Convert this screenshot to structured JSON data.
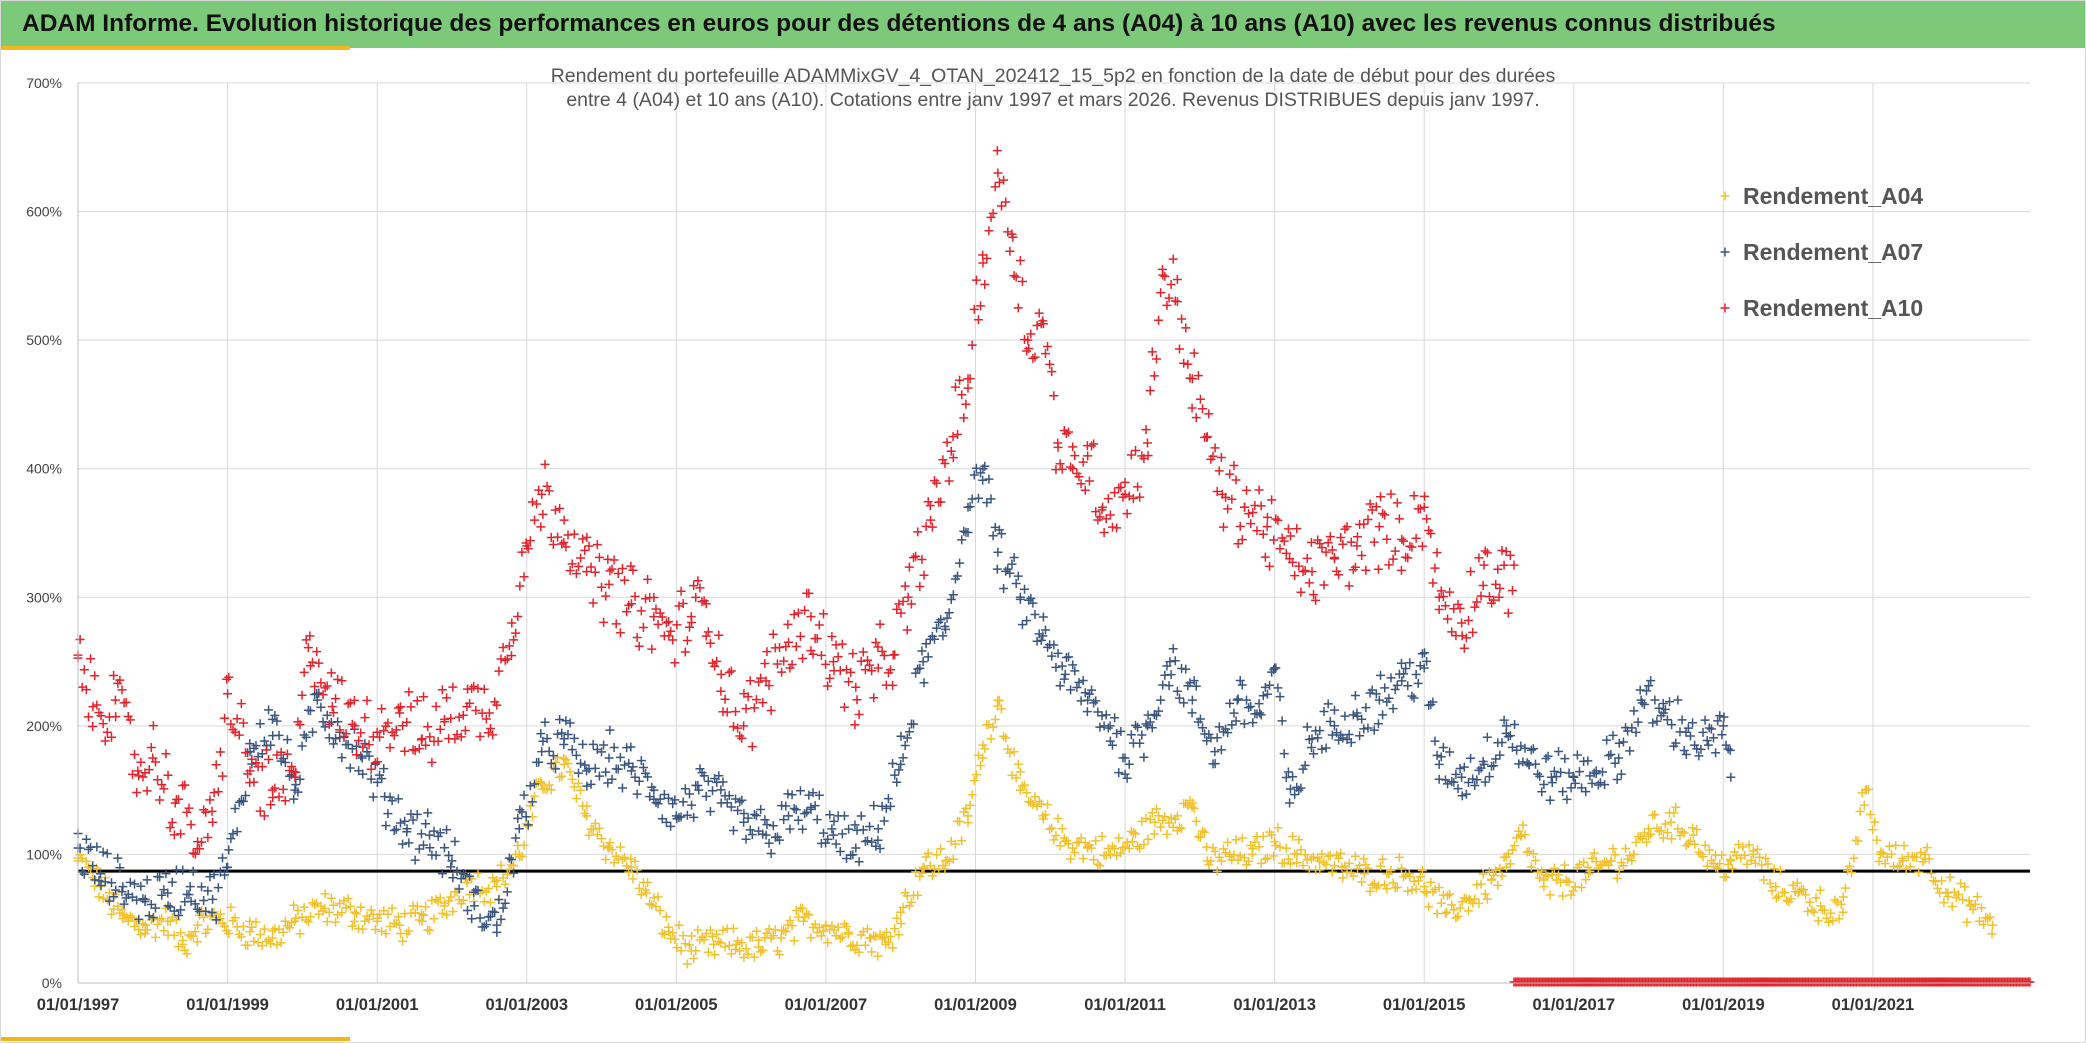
{
  "banner": {
    "title": "ADAM Informe. Evolution historique des performances en euros pour des détentions de 4 ans (A04) à 10 ans (A10) avec les revenus connus distribués"
  },
  "colors": {
    "banner_bg": "#7dc97a",
    "accent": "#f2b51c",
    "A04": "#f2c12e",
    "A07": "#3a5580",
    "A10": "#e3232c",
    "reference_line": "#000000",
    "grid": "#d9d9d9"
  },
  "chart_data": {
    "type": "scatter",
    "marker": "plus",
    "title_lines": [
      "Rendement du portefeuille ADAMMixGV_4_OTAN_202412_15_5p2  en fonction de la date de début pour des durées",
      "entre 4 (A04) et 10 ans (A10). Cotations entre janv 1997 et mars 2026. Revenus DISTRIBUES depuis janv 1997."
    ],
    "xlim": [
      1997.0,
      2023.1
    ],
    "ylim": [
      0,
      700
    ],
    "y_ticks": [
      0,
      100,
      200,
      300,
      400,
      500,
      600,
      700
    ],
    "y_tick_labels": [
      "0%",
      "100%",
      "200%",
      "300%",
      "400%",
      "500%",
      "600%",
      "700%"
    ],
    "x_ticks": [
      1997,
      1999,
      2001,
      2003,
      2005,
      2007,
      2009,
      2011,
      2013,
      2015,
      2017,
      2019,
      2021
    ],
    "x_tick_labels": [
      "01/01/1997",
      "01/01/1999",
      "01/01/2001",
      "01/01/2003",
      "01/01/2005",
      "01/01/2007",
      "01/01/2009",
      "01/01/2011",
      "01/01/2013",
      "01/01/2015",
      "01/01/2017",
      "01/01/2019",
      "01/01/2021"
    ],
    "grid": true,
    "legend_position": "right",
    "reference_line_y": 87,
    "zero_band_A10": {
      "x_start": 2016.2,
      "x_end": 2023.1,
      "y": 0
    },
    "series": [
      {
        "name": "Rendement_A04",
        "key": "A04",
        "x": [
          1997.0,
          1997.3,
          1997.6,
          1997.9,
          1998.2,
          1998.4,
          1998.6,
          1998.9,
          1999.3,
          1999.6,
          1999.9,
          2000.3,
          2000.7,
          2001.0,
          2001.3,
          2001.6,
          2001.9,
          2002.2,
          2002.6,
          2002.9,
          2003.2,
          2003.5,
          2003.8,
          2004.1,
          2004.4,
          2004.6,
          2004.9,
          2005.2,
          2005.5,
          2005.8,
          2006.1,
          2006.4,
          2006.7,
          2007.0,
          2007.3,
          2007.6,
          2007.8,
          2008.0,
          2008.3,
          2008.6,
          2008.9,
          2009.1,
          2009.3,
          2009.6,
          2009.9,
          2010.2,
          2010.5,
          2010.8,
          2011.1,
          2011.4,
          2011.7,
          2011.9,
          2012.1,
          2012.4,
          2012.7,
          2013.0,
          2013.3,
          2013.6,
          2013.9,
          2014.2,
          2014.5,
          2014.8,
          2015.0,
          2015.3,
          2015.6,
          2015.9,
          2016.1,
          2016.3,
          2016.6,
          2016.9,
          2017.2,
          2017.5,
          2017.8,
          2018.0,
          2018.3,
          2018.6,
          2018.9,
          2019.1,
          2019.4,
          2019.7,
          2020.0,
          2020.3,
          2020.6,
          2020.9,
          2021.1,
          2021.4,
          2021.7,
          2022.0,
          2022.3,
          2022.6
        ],
        "values": [
          95,
          75,
          50,
          45,
          48,
          30,
          45,
          50,
          40,
          35,
          48,
          58,
          55,
          48,
          45,
          48,
          60,
          78,
          75,
          100,
          155,
          170,
          130,
          105,
          90,
          70,
          40,
          25,
          30,
          30,
          28,
          35,
          48,
          45,
          38,
          35,
          30,
          55,
          90,
          95,
          130,
          185,
          220,
          150,
          130,
          110,
          105,
          100,
          110,
          125,
          130,
          140,
          95,
          100,
          100,
          110,
          100,
          95,
          90,
          85,
          85,
          85,
          75,
          55,
          65,
          80,
          90,
          115,
          75,
          80,
          85,
          95,
          100,
          120,
          125,
          115,
          90,
          95,
          100,
          75,
          70,
          60,
          55,
          150,
          100,
          95,
          100,
          70,
          60,
          45
        ]
      },
      {
        "name": "Rendement_A07",
        "key": "A07",
        "x": [
          1997.0,
          1997.3,
          1997.6,
          1997.9,
          1998.2,
          1998.5,
          1998.8,
          1999.0,
          1999.3,
          1999.6,
          1999.9,
          2000.2,
          2000.5,
          2000.8,
          2001.1,
          2001.4,
          2001.7,
          2002.0,
          2002.3,
          2002.6,
          2002.9,
          2003.2,
          2003.5,
          2003.8,
          2004.1,
          2004.4,
          2004.7,
          2005.0,
          2005.3,
          2005.6,
          2005.9,
          2006.2,
          2006.5,
          2006.8,
          2007.1,
          2007.4,
          2007.7,
          2008.0,
          2008.3,
          2008.6,
          2008.9,
          2009.1,
          2009.3,
          2009.6,
          2009.9,
          2010.2,
          2010.5,
          2010.8,
          2011.0,
          2011.3,
          2011.6,
          2011.9,
          2012.2,
          2012.5,
          2012.8,
          2013.0,
          2013.2,
          2013.5,
          2013.8,
          2014.1,
          2014.4,
          2014.7,
          2015.0,
          2015.2,
          2015.5,
          2015.8,
          2016.1,
          2016.4,
          2016.7,
          2017.0,
          2017.3,
          2017.6,
          2017.9,
          2018.2,
          2018.5,
          2018.8,
          2019.0,
          2019.1
        ],
        "values": [
          105,
          85,
          75,
          65,
          70,
          75,
          65,
          90,
          180,
          205,
          150,
          220,
          195,
          175,
          145,
          120,
          115,
          95,
          60,
          45,
          120,
          180,
          190,
          165,
          175,
          165,
          150,
          130,
          150,
          140,
          125,
          115,
          130,
          135,
          115,
          105,
          120,
          170,
          250,
          275,
          370,
          400,
          335,
          300,
          270,
          240,
          220,
          200,
          175,
          200,
          250,
          220,
          180,
          220,
          210,
          245,
          140,
          190,
          200,
          210,
          220,
          235,
          245,
          170,
          160,
          170,
          200,
          170,
          160,
          160,
          165,
          175,
          220,
          210,
          195,
          185,
          200,
          160
        ]
      },
      {
        "name": "Rendement_A10",
        "key": "A10",
        "x": [
          1997.0,
          1997.2,
          1997.5,
          1997.8,
          1998.0,
          1998.3,
          1998.6,
          1998.8,
          1999.0,
          1999.3,
          1999.6,
          1999.9,
          2000.1,
          2000.4,
          2000.7,
          2001.0,
          2001.3,
          2001.6,
          2001.9,
          2002.2,
          2002.5,
          2002.8,
          2003.0,
          2003.2,
          2003.5,
          2003.8,
          2004.1,
          2004.4,
          2004.7,
          2004.9,
          2005.2,
          2005.4,
          2005.6,
          2005.9,
          2006.2,
          2006.5,
          2006.8,
          2007.1,
          2007.4,
          2007.7,
          2007.9,
          2008.1,
          2008.4,
          2008.7,
          2008.9,
          2009.1,
          2009.3,
          2009.5,
          2009.7,
          2009.9,
          2010.1,
          2010.3,
          2010.5,
          2010.7,
          2011.0,
          2011.3,
          2011.5,
          2011.7,
          2011.9,
          2012.1,
          2012.3,
          2012.6,
          2012.9,
          2013.2,
          2013.5,
          2013.8,
          2014.1,
          2014.4,
          2014.7,
          2015.0,
          2015.2,
          2015.5,
          2015.8,
          2016.0,
          2016.2
        ],
        "values": [
          255,
          215,
          220,
          165,
          175,
          140,
          110,
          125,
          225,
          165,
          150,
          160,
          270,
          215,
          200,
          195,
          210,
          190,
          205,
          215,
          210,
          280,
          340,
          380,
          360,
          320,
          310,
          295,
          285,
          270,
          285,
          295,
          240,
          200,
          235,
          265,
          285,
          250,
          230,
          245,
          255,
          300,
          360,
          425,
          470,
          560,
          630,
          580,
          500,
          515,
          420,
          400,
          410,
          370,
          380,
          420,
          555,
          530,
          470,
          425,
          380,
          370,
          355,
          330,
          320,
          330,
          340,
          355,
          345,
          370,
          300,
          280,
          325,
          300,
          325
        ]
      }
    ]
  }
}
